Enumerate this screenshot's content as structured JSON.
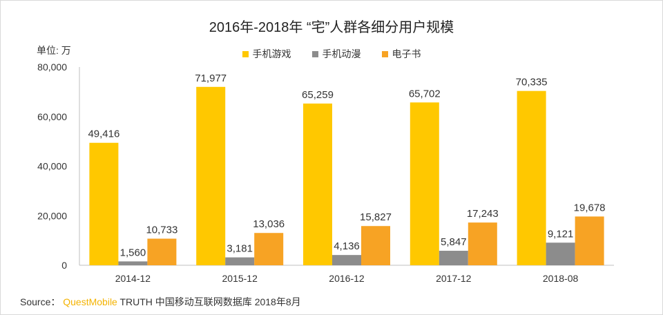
{
  "chart_data": {
    "type": "bar",
    "title": "2016年-2018年 “宅”人群各细分用户规模",
    "ylabel": "单位: 万",
    "categories": [
      "2014-12",
      "2015-12",
      "2016-12",
      "2017-12",
      "2018-08"
    ],
    "series": [
      {
        "name": "手机游戏",
        "color": "#ffc800",
        "values": [
          49416,
          71977,
          65259,
          65702,
          70335
        ]
      },
      {
        "name": "手机动漫",
        "color": "#8c8c8c",
        "values": [
          1560,
          3181,
          4136,
          5847,
          9121
        ]
      },
      {
        "name": "电子书",
        "color": "#f7a324",
        "values": [
          10733,
          13036,
          15827,
          17243,
          19678
        ]
      }
    ],
    "ylim": [
      0,
      80000
    ],
    "yticks": [
      "0",
      "20,000",
      "40,000",
      "60,000",
      "80,000"
    ],
    "grid": false,
    "legend_position": "top"
  },
  "source": {
    "prefix": "Source：",
    "brand": "QuestMobile",
    "text": "TRUTH 中国移动互联网数据库 2018年8月"
  }
}
